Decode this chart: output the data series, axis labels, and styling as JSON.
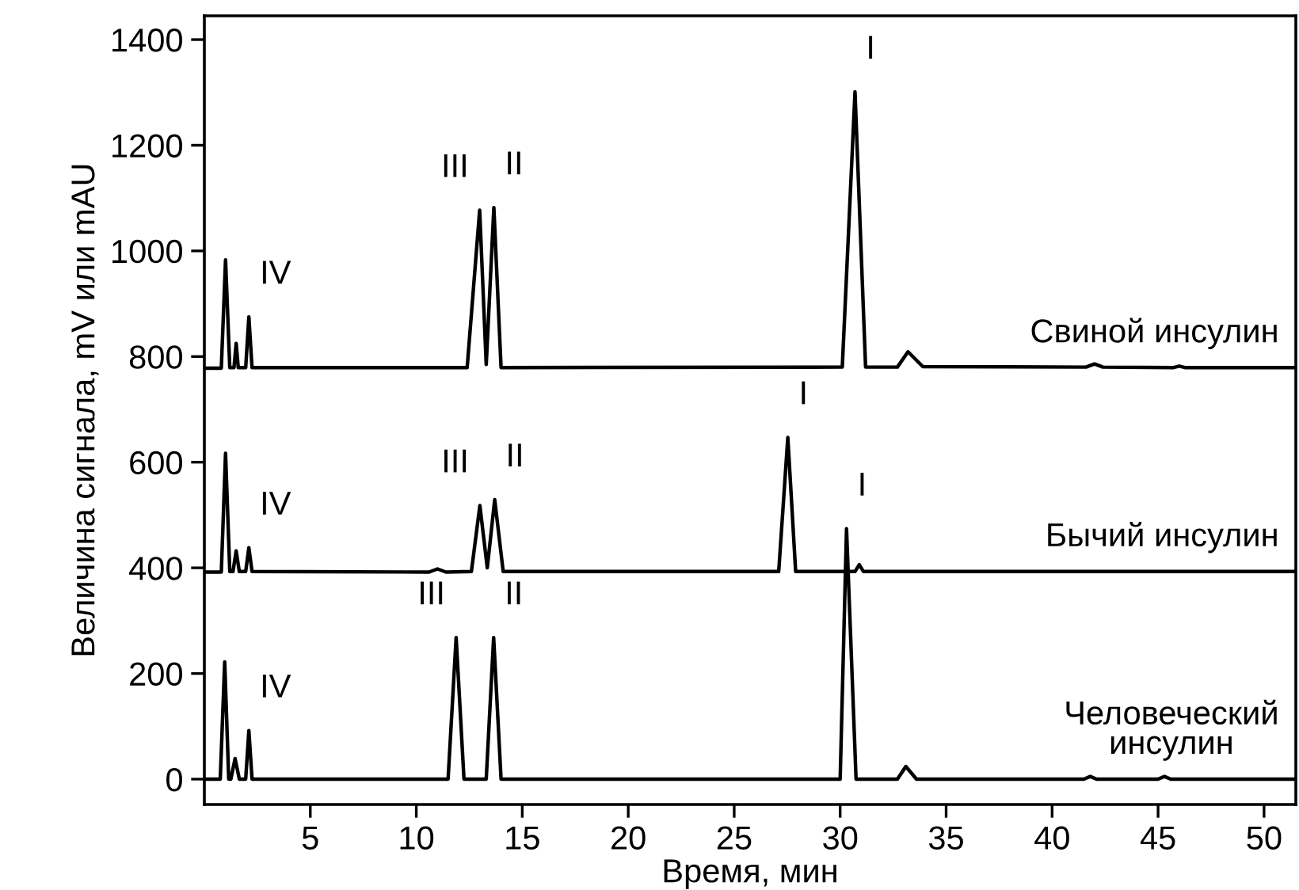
{
  "chart_data": {
    "type": "line",
    "xlabel": "Время, мин",
    "ylabel": "Величина сигнала, mV или mAU",
    "xlim": [
      0,
      51.5
    ],
    "ylim": [
      -48,
      1445
    ],
    "xticks": [
      5,
      10,
      15,
      20,
      25,
      30,
      35,
      40,
      45,
      50
    ],
    "yticks": [
      0,
      200,
      400,
      600,
      800,
      1000,
      1200,
      1400
    ],
    "grid": false,
    "legend": false,
    "marker": "none",
    "line_style": "solid",
    "series": [
      {
        "name": "Свиной инсулин",
        "color": "#000000",
        "x": [
          0,
          0.8,
          1.0,
          1.2,
          1.4,
          1.5,
          1.6,
          1.95,
          2.1,
          2.25,
          12.4,
          12.99,
          13.3,
          13.66,
          14.0,
          30.1,
          30.7,
          31.2,
          32.7,
          33.2,
          33.9,
          41.6,
          42.0,
          42.4,
          45.7,
          46.0,
          46.3,
          51.5
        ],
        "values": [
          778,
          778,
          983,
          779,
          779,
          825,
          779,
          779,
          875,
          779,
          779,
          1077,
          785,
          1082,
          779,
          780,
          1301,
          780,
          780,
          809,
          781,
          780,
          786,
          780,
          779,
          782,
          779,
          779
        ]
      },
      {
        "name": "Бычий инсулин",
        "color": "#000000",
        "x": [
          0,
          0.8,
          1.0,
          1.2,
          1.35,
          1.5,
          1.65,
          1.95,
          2.1,
          2.25,
          10.6,
          11.0,
          11.4,
          12.6,
          13.0,
          13.35,
          13.7,
          14.1,
          27.1,
          27.53,
          27.9,
          30.7,
          30.9,
          31.1,
          51.5
        ],
        "values": [
          392,
          392,
          617,
          393,
          393,
          432,
          393,
          393,
          438,
          393,
          392,
          398,
          392,
          393,
          518,
          400,
          529,
          393,
          393,
          647,
          393,
          393,
          406,
          393,
          393
        ]
      },
      {
        "name": "Человеческий\nинсулин",
        "color": "#000000",
        "x": [
          0,
          0.75,
          0.96,
          1.15,
          1.25,
          1.45,
          1.65,
          1.95,
          2.1,
          2.25,
          11.5,
          11.88,
          12.25,
          13.3,
          13.65,
          14.0,
          30.0,
          30.3,
          30.75,
          32.7,
          33.1,
          33.6,
          41.5,
          41.8,
          42.1,
          45.0,
          45.3,
          45.6,
          51.5
        ],
        "values": [
          0,
          0,
          222,
          0,
          0,
          39,
          0,
          0,
          92,
          0,
          0,
          268,
          0,
          0,
          268,
          0,
          0,
          474,
          0,
          0,
          24,
          0,
          0,
          5,
          0,
          0,
          5,
          0,
          0
        ]
      }
    ],
    "annotations": [
      {
        "text": "IV",
        "x": 2.1,
        "y": 875
      },
      {
        "text": "III",
        "x": 12.99,
        "y": 1077
      },
      {
        "text": "II",
        "x": 13.66,
        "y": 1082
      },
      {
        "text": "I",
        "x": 30.7,
        "y": 1301
      },
      {
        "text": "IV",
        "x": 2.1,
        "y": 438
      },
      {
        "text": "III",
        "x": 13.0,
        "y": 518
      },
      {
        "text": "II",
        "x": 13.7,
        "y": 529
      },
      {
        "text": "I",
        "x": 27.53,
        "y": 647
      },
      {
        "text": "IV",
        "x": 2.1,
        "y": 92
      },
      {
        "text": "III",
        "x": 11.88,
        "y": 268
      },
      {
        "text": "II",
        "x": 13.65,
        "y": 268
      },
      {
        "text": "I",
        "x": 30.3,
        "y": 474
      }
    ]
  }
}
